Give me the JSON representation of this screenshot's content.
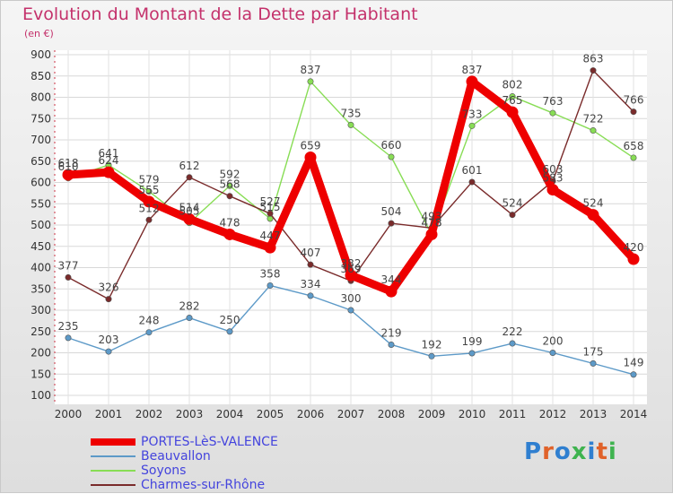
{
  "header": {
    "title": "Evolution du Montant de la Dette par Habitant",
    "unit": "(en €)"
  },
  "logo": {
    "text": "Proxiti"
  },
  "chart_data": {
    "type": "line",
    "title": "Evolution du Montant de la Dette par Habitant",
    "subtitle": "(en €)",
    "xlabel": "",
    "ylabel": "",
    "x": [
      "2000",
      "2001",
      "2002",
      "2003",
      "2004",
      "2005",
      "2006",
      "2007",
      "2008",
      "2009",
      "2010",
      "2011",
      "2012",
      "2013",
      "2014"
    ],
    "ylim": [
      100,
      900
    ],
    "yticks": [
      "100",
      "150",
      "200",
      "250",
      "300",
      "350",
      "400",
      "450",
      "500",
      "550",
      "600",
      "650",
      "700",
      "750",
      "800",
      "850",
      "900"
    ],
    "grid": true,
    "legend_position": "bottom-left",
    "series": [
      {
        "name": "PORTES-LèS-VALENCE",
        "color": "#ee0000",
        "values": [
          618,
          624,
          555,
          514,
          478,
          447,
          659,
          382,
          344,
          478,
          837,
          765,
          583,
          524,
          420
        ]
      },
      {
        "name": "Beauvallon",
        "color": "#5d9ac8",
        "values": [
          235,
          203,
          248,
          282,
          250,
          358,
          334,
          300,
          219,
          192,
          199,
          222,
          200,
          175,
          149
        ]
      },
      {
        "name": "Soyons",
        "color": "#88dd55",
        "values": [
          610,
          641,
          579,
          505,
          592,
          515,
          837,
          735,
          660,
          478,
          733,
          802,
          763,
          722,
          658
        ]
      },
      {
        "name": "Charmes-sur-Rhône",
        "color": "#7a2b2b",
        "values": [
          377,
          326,
          512,
          612,
          568,
          527,
          407,
          369,
          504,
          493,
          601,
          524,
          603,
          863,
          766
        ]
      }
    ]
  }
}
